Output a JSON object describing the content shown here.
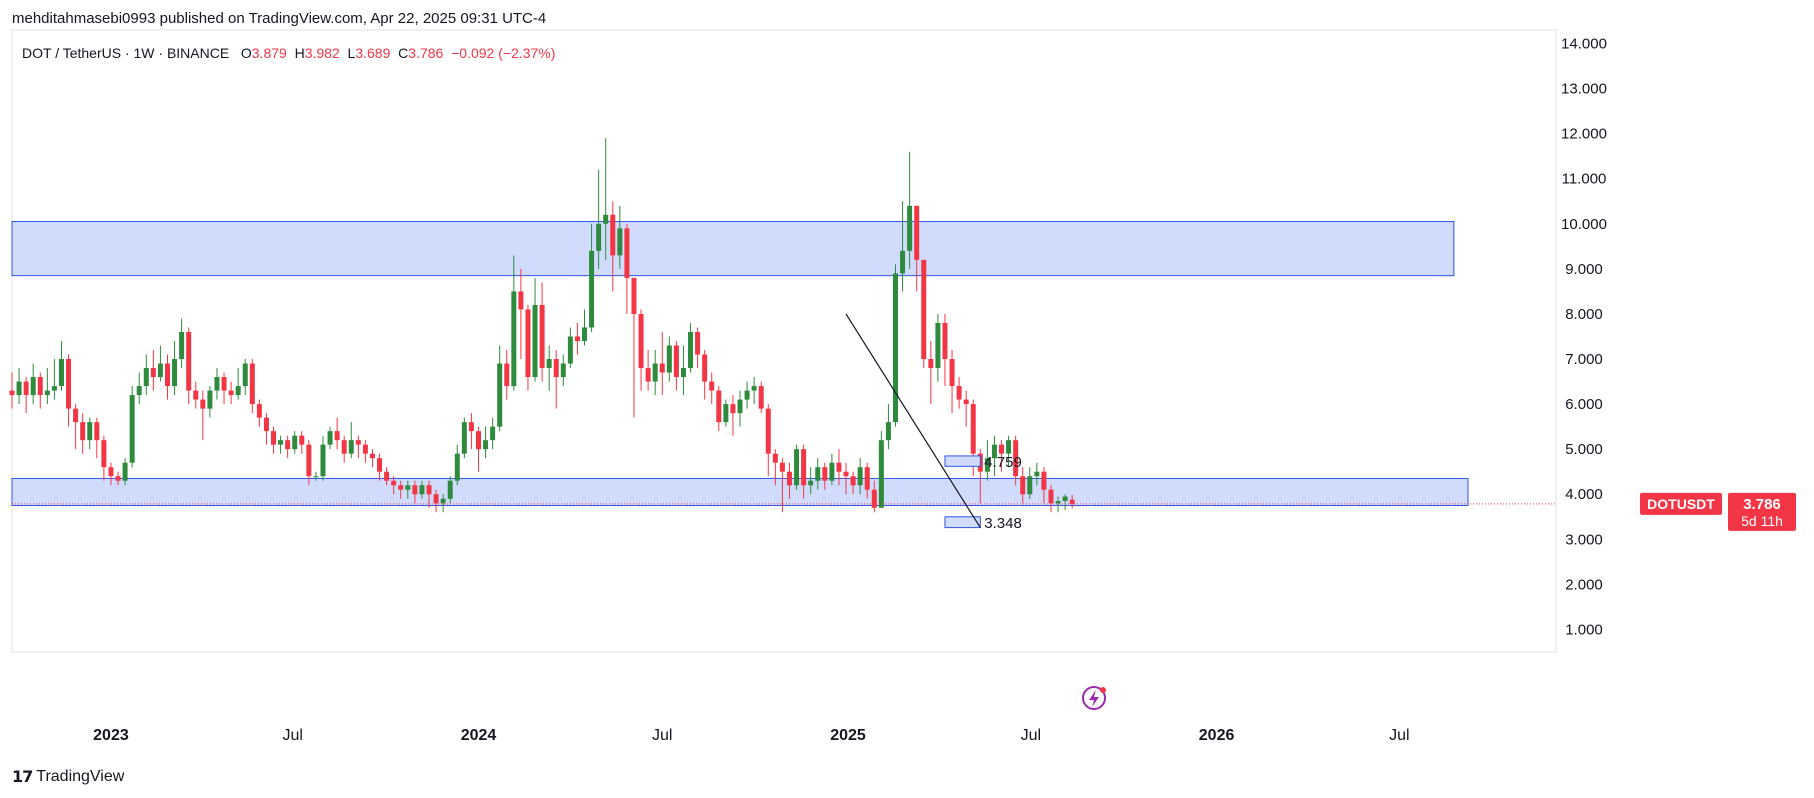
{
  "header": {
    "published": "mehditahmasebi0993 published on TradingView.com, Apr 22, 2025 09:31 UTC-4"
  },
  "legend": {
    "symbol": "DOT / TetherUS · 1W · BINANCE",
    "o_label": "O",
    "o_value": "3.879",
    "h_label": "H",
    "h_value": "3.982",
    "l_label": "L",
    "l_value": "3.689",
    "c_label": "C",
    "c_value": "3.786",
    "change": "−0.092 (−2.37%)"
  },
  "footer": {
    "brand": "TradingView"
  },
  "colors": {
    "up": "#2e8b3e",
    "down": "#f23645",
    "zone_fill": "#d1dcfd",
    "zone_stroke": "#2f54eb",
    "badge": "#f23645"
  },
  "chart_data": {
    "type": "candlestick",
    "symbol": "DOTUSDT",
    "timeframe": "1W",
    "exchange": "BINANCE",
    "y_axis": {
      "range": [
        0.5,
        14.3
      ],
      "ticks": [
        "14.000",
        "13.000",
        "12.000",
        "11.000",
        "10.000",
        "9.000",
        "8.000",
        "7.000",
        "6.000",
        "5.000",
        "4.000",
        "3.000",
        "2.000",
        "1.000"
      ]
    },
    "x_axis": {
      "start": "2022-09-26",
      "end": "2026-09-07",
      "labels": [
        {
          "date": "2023-01-02",
          "text": "2023",
          "bold": true
        },
        {
          "date": "2023-07-01",
          "text": "Jul",
          "bold": false
        },
        {
          "date": "2024-01-01",
          "text": "2024",
          "bold": true
        },
        {
          "date": "2024-07-01",
          "text": "Jul",
          "bold": false
        },
        {
          "date": "2025-01-01",
          "text": "2025",
          "bold": true
        },
        {
          "date": "2025-07-01",
          "text": "Jul",
          "bold": false
        },
        {
          "date": "2026-01-01",
          "text": "2026",
          "bold": true
        },
        {
          "date": "2026-07-01",
          "text": "Jul",
          "bold": false
        }
      ]
    },
    "first_candle_date": "2022-09-26",
    "candles": [
      [
        6.3,
        6.2,
        6.7,
        5.9
      ],
      [
        6.2,
        6.5,
        6.8,
        6.0
      ],
      [
        6.5,
        6.2,
        6.6,
        5.8
      ],
      [
        6.2,
        6.6,
        6.9,
        6.0
      ],
      [
        6.6,
        6.2,
        6.7,
        5.9
      ],
      [
        6.2,
        6.3,
        6.8,
        6.0
      ],
      [
        6.3,
        6.4,
        7.0,
        6.1
      ],
      [
        6.4,
        7.0,
        7.4,
        6.3
      ],
      [
        7.0,
        5.9,
        7.1,
        5.5
      ],
      [
        5.9,
        5.6,
        6.0,
        5.0
      ],
      [
        5.6,
        5.2,
        5.8,
        4.9
      ],
      [
        5.2,
        5.6,
        5.7,
        5.0
      ],
      [
        5.6,
        5.2,
        5.7,
        4.8
      ],
      [
        5.2,
        4.6,
        5.3,
        4.3
      ],
      [
        4.6,
        4.4,
        4.7,
        4.2
      ],
      [
        4.4,
        4.3,
        4.5,
        4.2
      ],
      [
        4.3,
        4.7,
        4.8,
        4.2
      ],
      [
        4.7,
        6.2,
        6.4,
        4.6
      ],
      [
        6.2,
        6.4,
        6.7,
        6.0
      ],
      [
        6.4,
        6.8,
        7.1,
        6.2
      ],
      [
        6.8,
        6.6,
        7.2,
        6.3
      ],
      [
        6.6,
        6.9,
        7.3,
        6.5
      ],
      [
        6.9,
        6.4,
        7.1,
        6.1
      ],
      [
        6.4,
        7.0,
        7.4,
        6.2
      ],
      [
        7.0,
        7.6,
        7.9,
        6.8
      ],
      [
        7.6,
        6.3,
        7.7,
        6.0
      ],
      [
        6.3,
        6.1,
        6.5,
        5.9
      ],
      [
        6.1,
        5.9,
        6.3,
        5.2
      ],
      [
        5.9,
        6.3,
        6.4,
        5.7
      ],
      [
        6.3,
        6.6,
        6.8,
        6.1
      ],
      [
        6.6,
        6.3,
        6.7,
        6.0
      ],
      [
        6.3,
        6.2,
        6.5,
        6.0
      ],
      [
        6.2,
        6.4,
        6.8,
        6.1
      ],
      [
        6.4,
        6.9,
        7.0,
        6.2
      ],
      [
        6.9,
        6.0,
        7.0,
        5.8
      ],
      [
        6.0,
        5.7,
        6.1,
        5.5
      ],
      [
        5.7,
        5.4,
        5.8,
        5.1
      ],
      [
        5.4,
        5.1,
        5.5,
        4.9
      ],
      [
        5.1,
        5.2,
        5.3,
        4.9
      ],
      [
        5.2,
        5.0,
        5.3,
        4.8
      ],
      [
        5.0,
        5.3,
        5.4,
        4.9
      ],
      [
        5.3,
        5.1,
        5.4,
        4.9
      ],
      [
        5.1,
        4.4,
        5.2,
        4.2
      ],
      [
        4.4,
        4.4,
        4.5,
        4.3
      ],
      [
        4.4,
        5.1,
        5.3,
        4.3
      ],
      [
        5.1,
        5.4,
        5.5,
        5.0
      ],
      [
        5.4,
        5.2,
        5.7,
        5.0
      ],
      [
        5.2,
        4.9,
        5.3,
        4.7
      ],
      [
        4.9,
        5.2,
        5.6,
        4.8
      ],
      [
        5.2,
        5.1,
        5.3,
        4.8
      ],
      [
        5.1,
        4.9,
        5.2,
        4.7
      ],
      [
        4.9,
        4.8,
        5.0,
        4.6
      ],
      [
        4.8,
        4.5,
        4.9,
        4.3
      ],
      [
        4.5,
        4.3,
        4.6,
        4.2
      ],
      [
        4.3,
        4.2,
        4.4,
        4.0
      ],
      [
        4.2,
        4.1,
        4.3,
        3.9
      ],
      [
        4.1,
        4.2,
        4.3,
        3.9
      ],
      [
        4.2,
        4.0,
        4.3,
        3.8
      ],
      [
        4.0,
        4.2,
        4.3,
        3.9
      ],
      [
        4.2,
        4.0,
        4.3,
        3.7
      ],
      [
        4.0,
        3.8,
        4.1,
        3.6
      ],
      [
        3.8,
        3.9,
        4.0,
        3.6
      ],
      [
        3.9,
        4.3,
        4.4,
        3.8
      ],
      [
        4.3,
        4.9,
        5.1,
        4.2
      ],
      [
        4.9,
        5.6,
        5.7,
        4.8
      ],
      [
        5.6,
        5.4,
        5.8,
        5.0
      ],
      [
        5.4,
        5.0,
        5.5,
        4.5
      ],
      [
        5.0,
        5.2,
        5.5,
        4.8
      ],
      [
        5.2,
        5.5,
        5.7,
        5.0
      ],
      [
        5.5,
        6.9,
        7.3,
        5.4
      ],
      [
        6.9,
        6.4,
        7.2,
        6.1
      ],
      [
        6.4,
        8.5,
        9.3,
        6.3
      ],
      [
        8.5,
        8.1,
        9.0,
        7.0
      ],
      [
        8.1,
        6.6,
        8.2,
        6.3
      ],
      [
        6.6,
        8.2,
        8.8,
        6.5
      ],
      [
        8.2,
        6.8,
        8.7,
        6.5
      ],
      [
        6.8,
        7.0,
        7.3,
        6.3
      ],
      [
        7.0,
        6.6,
        7.2,
        5.9
      ],
      [
        6.6,
        6.9,
        7.1,
        6.4
      ],
      [
        6.9,
        7.5,
        7.7,
        6.8
      ],
      [
        7.5,
        7.4,
        7.8,
        7.1
      ],
      [
        7.4,
        7.7,
        8.1,
        7.3
      ],
      [
        7.7,
        9.4,
        10.0,
        7.6
      ],
      [
        9.4,
        10.0,
        11.2,
        9.0
      ],
      [
        10.0,
        10.2,
        11.9,
        9.2
      ],
      [
        10.2,
        9.3,
        10.5,
        8.5
      ],
      [
        9.3,
        9.9,
        10.4,
        9.0
      ],
      [
        9.9,
        8.8,
        10.0,
        8.0
      ],
      [
        8.8,
        8.0,
        8.8,
        5.7
      ],
      [
        8.0,
        6.8,
        8.1,
        6.3
      ],
      [
        6.8,
        6.5,
        7.2,
        6.3
      ],
      [
        6.5,
        6.9,
        7.2,
        6.2
      ],
      [
        6.9,
        6.7,
        7.6,
        6.2
      ],
      [
        6.7,
        7.3,
        7.5,
        6.5
      ],
      [
        7.3,
        6.6,
        7.4,
        6.3
      ],
      [
        6.6,
        6.8,
        7.3,
        6.2
      ],
      [
        6.8,
        7.6,
        7.8,
        6.7
      ],
      [
        7.6,
        7.1,
        7.7,
        6.8
      ],
      [
        7.1,
        6.5,
        7.2,
        6.1
      ],
      [
        6.5,
        6.3,
        6.7,
        6.0
      ],
      [
        6.3,
        5.6,
        6.4,
        5.4
      ],
      [
        5.6,
        6.0,
        6.1,
        5.5
      ],
      [
        6.0,
        5.8,
        6.2,
        5.3
      ],
      [
        5.8,
        6.1,
        6.3,
        5.5
      ],
      [
        6.1,
        6.3,
        6.5,
        5.9
      ],
      [
        6.3,
        6.4,
        6.6,
        6.0
      ],
      [
        6.4,
        5.9,
        6.5,
        5.8
      ],
      [
        5.9,
        4.9,
        6.0,
        4.4
      ],
      [
        4.9,
        4.7,
        5.0,
        4.2
      ],
      [
        4.7,
        4.5,
        4.8,
        3.6
      ],
      [
        4.5,
        4.2,
        4.7,
        3.9
      ],
      [
        4.2,
        5.0,
        5.1,
        4.1
      ],
      [
        5.0,
        4.2,
        5.1,
        3.9
      ],
      [
        4.2,
        4.3,
        4.6,
        4.0
      ],
      [
        4.3,
        4.6,
        4.8,
        4.1
      ],
      [
        4.6,
        4.3,
        4.7,
        4.1
      ],
      [
        4.3,
        4.7,
        4.9,
        4.2
      ],
      [
        4.7,
        4.5,
        5.0,
        4.2
      ],
      [
        4.5,
        4.4,
        4.7,
        4.0
      ],
      [
        4.4,
        4.2,
        4.5,
        4.0
      ],
      [
        4.2,
        4.6,
        4.8,
        4.0
      ],
      [
        4.6,
        4.1,
        4.7,
        3.9
      ],
      [
        4.1,
        3.7,
        4.3,
        3.6
      ],
      [
        3.7,
        5.2,
        5.4,
        3.7
      ],
      [
        5.2,
        5.6,
        6.0,
        5.0
      ],
      [
        5.6,
        8.9,
        9.1,
        5.5
      ],
      [
        8.9,
        9.4,
        10.5,
        8.5
      ],
      [
        9.4,
        10.4,
        11.6,
        9.0
      ],
      [
        10.4,
        9.2,
        10.4,
        8.5
      ],
      [
        9.2,
        7.0,
        9.2,
        6.8
      ],
      [
        7.0,
        6.8,
        7.4,
        6.0
      ],
      [
        6.8,
        7.8,
        8.0,
        6.5
      ],
      [
        7.8,
        7.0,
        8.0,
        6.4
      ],
      [
        7.0,
        6.4,
        7.2,
        5.8
      ],
      [
        6.4,
        6.1,
        6.6,
        5.9
      ],
      [
        6.1,
        6.0,
        6.3,
        5.5
      ],
      [
        6.0,
        4.9,
        6.1,
        4.4
      ],
      [
        4.9,
        4.5,
        5.0,
        3.8
      ],
      [
        4.5,
        4.8,
        5.2,
        4.3
      ],
      [
        4.8,
        5.1,
        5.3,
        4.4
      ],
      [
        5.1,
        4.9,
        5.2,
        4.5
      ],
      [
        4.9,
        5.2,
        5.3,
        4.6
      ],
      [
        5.2,
        4.4,
        5.3,
        4.2
      ],
      [
        4.4,
        4.0,
        4.6,
        3.8
      ],
      [
        4.0,
        4.4,
        4.6,
        3.9
      ],
      [
        4.4,
        4.5,
        4.7,
        4.2
      ],
      [
        4.5,
        4.1,
        4.6,
        3.8
      ],
      [
        4.1,
        3.8,
        4.2,
        3.6
      ],
      [
        3.8,
        3.85,
        3.95,
        3.6
      ],
      [
        3.85,
        3.95,
        4.0,
        3.65
      ],
      [
        3.879,
        3.786,
        3.982,
        3.689
      ]
    ],
    "zones": [
      {
        "from_date": "2022-09-26",
        "to_date": "2026-08-24",
        "top": 10.05,
        "bottom": 8.85
      },
      {
        "from_date": "2022-09-26",
        "to_date": "2026-09-07",
        "top": 4.35,
        "bottom": 3.75
      }
    ],
    "levels": [
      {
        "label": "4.759",
        "from_date": "2025-04-07",
        "to_date": "2025-05-12",
        "top": 4.85,
        "bottom": 4.62
      },
      {
        "label": "3.348",
        "from_date": "2025-04-07",
        "to_date": "2025-05-12",
        "top": 3.5,
        "bottom": 3.26
      }
    ],
    "trendline": {
      "from_date": "2024-12-30",
      "from_price": 8.0,
      "to_date": "2025-05-12",
      "to_price": 3.26
    },
    "last_price": {
      "value": "3.786",
      "symbol": "DOTUSDT",
      "countdown": "5d 11h"
    }
  }
}
